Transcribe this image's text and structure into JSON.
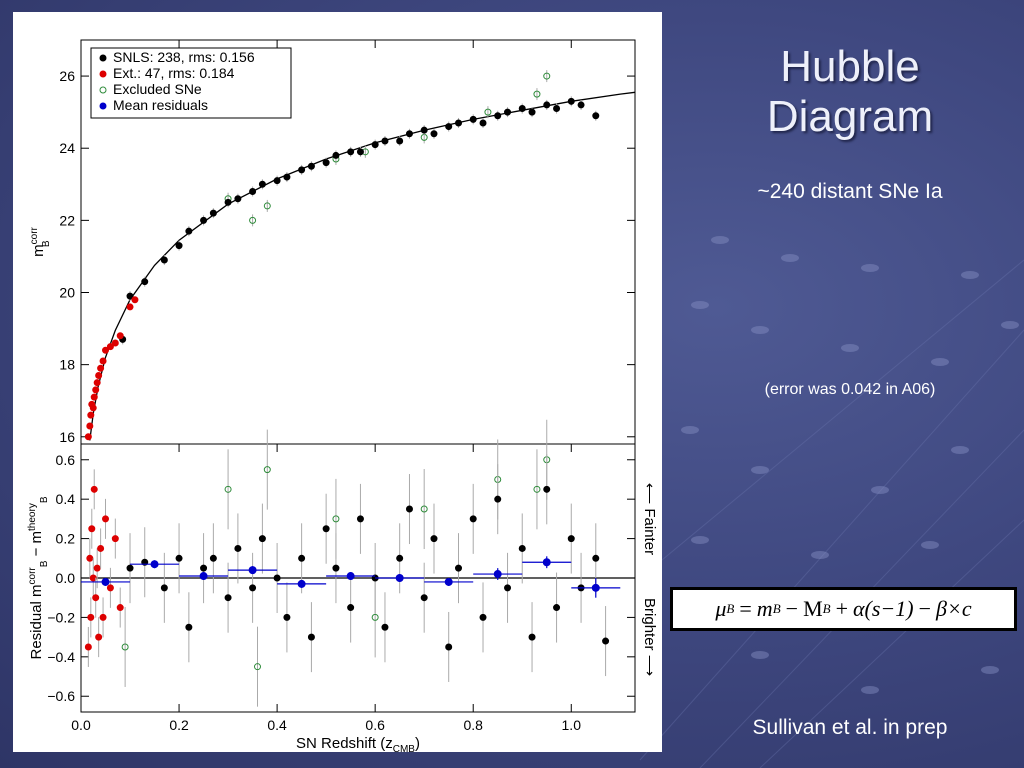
{
  "slide": {
    "title_line1": "Hubble",
    "title_line2": "Diagram",
    "subtitle": "~240 distant SNe Ia",
    "error_note": "(error was 0.042 in A06)",
    "citation": "Sullivan et al. in prep",
    "formula": {
      "mu": "μ",
      "mu_sub": "B",
      "eq": "=",
      "m": "m",
      "m_sub": "B",
      "minus1": "−",
      "M": "M",
      "M_sub": "B",
      "plus": "+",
      "alpha_term": "α(s−1)",
      "minus2": "−",
      "beta_term": "β×c"
    }
  },
  "colors": {
    "snls": "#000000",
    "ext": "#dd0000",
    "excluded": "#2e8b3a",
    "mean": "#0000cc",
    "errorbar": "#aaaaaa"
  },
  "chart_data": [
    {
      "type": "scatter",
      "panel": "top",
      "ylabel": "m",
      "ylabel_sup": "corr",
      "ylabel_sub": "B",
      "xlim": [
        0.0,
        1.13
      ],
      "ylim": [
        15.8,
        27.0
      ],
      "yticks": [
        "16",
        "18",
        "20",
        "22",
        "24",
        "26"
      ],
      "ytick_values": [
        16,
        18,
        20,
        22,
        24,
        26
      ],
      "legend": {
        "position": "top-left",
        "entries": [
          {
            "label": "SNLS: 238, rms: 0.156",
            "marker": "filled",
            "color_key": "snls"
          },
          {
            "label": "Ext.: 47, rms: 0.184",
            "marker": "filled",
            "color_key": "ext"
          },
          {
            "label": "Excluded SNe",
            "marker": "open",
            "color_key": "excluded"
          },
          {
            "label": "Mean residuals",
            "marker": "filled",
            "color_key": "mean"
          }
        ]
      },
      "model_curve": {
        "x": [
          0.018,
          0.025,
          0.035,
          0.05,
          0.07,
          0.1,
          0.15,
          0.2,
          0.3,
          0.4,
          0.5,
          0.6,
          0.7,
          0.8,
          0.9,
          1.0,
          1.1,
          1.13
        ],
        "y": [
          15.9,
          16.65,
          17.4,
          18.2,
          18.95,
          19.8,
          20.75,
          21.45,
          22.45,
          23.15,
          23.7,
          24.15,
          24.5,
          24.8,
          25.05,
          25.3,
          25.5,
          25.55
        ]
      },
      "ext_points": {
        "x": [
          0.015,
          0.018,
          0.02,
          0.022,
          0.025,
          0.027,
          0.03,
          0.033,
          0.036,
          0.04,
          0.045,
          0.05,
          0.06,
          0.07,
          0.08,
          0.1,
          0.11
        ],
        "y": [
          16.0,
          16.3,
          16.6,
          16.9,
          16.8,
          17.1,
          17.3,
          17.5,
          17.7,
          17.9,
          18.1,
          18.4,
          18.5,
          18.6,
          18.8,
          19.6,
          19.8
        ]
      },
      "excluded_points": {
        "x": [
          0.3,
          0.35,
          0.38,
          0.52,
          0.58,
          0.7,
          0.83,
          0.93,
          0.95
        ],
        "y": [
          22.6,
          22.0,
          22.4,
          23.7,
          23.9,
          24.3,
          25.0,
          25.5,
          26.0
        ]
      },
      "snls_points": {
        "x": [
          0.085,
          0.1,
          0.13,
          0.17,
          0.2,
          0.22,
          0.25,
          0.27,
          0.3,
          0.32,
          0.35,
          0.37,
          0.4,
          0.42,
          0.45,
          0.47,
          0.5,
          0.52,
          0.55,
          0.57,
          0.6,
          0.62,
          0.65,
          0.67,
          0.7,
          0.72,
          0.75,
          0.77,
          0.8,
          0.82,
          0.85,
          0.87,
          0.9,
          0.92,
          0.95,
          0.97,
          1.0,
          1.02,
          1.05
        ],
        "y": [
          18.7,
          19.9,
          20.3,
          20.9,
          21.3,
          21.7,
          22.0,
          22.2,
          22.5,
          22.6,
          22.8,
          23.0,
          23.1,
          23.2,
          23.4,
          23.5,
          23.6,
          23.8,
          23.9,
          23.9,
          24.1,
          24.2,
          24.2,
          24.4,
          24.5,
          24.4,
          24.6,
          24.7,
          24.8,
          24.7,
          24.9,
          25.0,
          25.1,
          25.0,
          25.2,
          25.1,
          25.3,
          25.2,
          24.9
        ]
      }
    },
    {
      "type": "scatter",
      "panel": "bottom",
      "ylabel": "Residual  m",
      "ylabel_sup1": "corr",
      "ylabel_sub1": "B",
      "ylabel_mid": " − m",
      "ylabel_sup2": "theory",
      "ylabel_sub2": "B",
      "xlabel": "SN Redshift (z",
      "xlabel_sub": "CMB",
      "xlabel_end": ")",
      "xlim": [
        0.0,
        1.13
      ],
      "ylim": [
        -0.68,
        0.68
      ],
      "xticks": [
        "0.0",
        "0.2",
        "0.4",
        "0.6",
        "0.8",
        "1.0"
      ],
      "xtick_values": [
        0.0,
        0.2,
        0.4,
        0.6,
        0.8,
        1.0
      ],
      "yticks": [
        "0.6",
        "0.4",
        "0.2",
        "0.0",
        "−0.2",
        "−0.4",
        "−0.6"
      ],
      "ytick_values": [
        0.6,
        0.4,
        0.2,
        0.0,
        -0.2,
        -0.4,
        -0.6
      ],
      "side_label_top": "⟵ Fainter",
      "side_label_bottom": "Brighter ⟶",
      "mean_residuals": {
        "x": [
          0.05,
          0.15,
          0.25,
          0.35,
          0.45,
          0.55,
          0.65,
          0.75,
          0.85,
          0.95,
          1.05
        ],
        "y": [
          -0.02,
          0.07,
          0.01,
          0.04,
          -0.03,
          0.01,
          0.0,
          -0.02,
          0.02,
          0.08,
          -0.05
        ],
        "xerr": [
          0.05,
          0.05,
          0.05,
          0.05,
          0.05,
          0.05,
          0.05,
          0.05,
          0.05,
          0.05,
          0.05
        ],
        "yerr": [
          0.02,
          0.02,
          0.02,
          0.02,
          0.02,
          0.02,
          0.02,
          0.02,
          0.03,
          0.03,
          0.05
        ]
      },
      "ext_points": {
        "x": [
          0.015,
          0.018,
          0.02,
          0.022,
          0.025,
          0.027,
          0.03,
          0.033,
          0.036,
          0.04,
          0.045,
          0.05,
          0.06,
          0.07,
          0.08
        ],
        "y": [
          -0.35,
          0.1,
          -0.2,
          0.25,
          0.0,
          0.45,
          -0.1,
          0.05,
          -0.3,
          0.15,
          -0.2,
          0.3,
          -0.05,
          0.2,
          -0.15
        ]
      },
      "excluded_points": {
        "x": [
          0.09,
          0.3,
          0.36,
          0.38,
          0.52,
          0.6,
          0.7,
          0.85,
          0.93,
          0.95
        ],
        "y": [
          -0.35,
          0.45,
          -0.45,
          0.55,
          0.3,
          -0.2,
          0.35,
          0.5,
          0.45,
          0.6
        ]
      },
      "snls_points": {
        "x": [
          0.1,
          0.13,
          0.17,
          0.2,
          0.22,
          0.25,
          0.27,
          0.3,
          0.32,
          0.35,
          0.37,
          0.4,
          0.42,
          0.45,
          0.47,
          0.5,
          0.52,
          0.55,
          0.57,
          0.6,
          0.62,
          0.65,
          0.67,
          0.7,
          0.72,
          0.75,
          0.77,
          0.8,
          0.82,
          0.85,
          0.87,
          0.9,
          0.92,
          0.95,
          0.97,
          1.0,
          1.02,
          1.05,
          1.07
        ],
        "y": [
          0.05,
          0.08,
          -0.05,
          0.1,
          -0.25,
          0.05,
          0.1,
          -0.1,
          0.15,
          -0.05,
          0.2,
          0.0,
          -0.2,
          0.1,
          -0.3,
          0.25,
          0.05,
          -0.15,
          0.3,
          0.0,
          -0.25,
          0.1,
          0.35,
          -0.1,
          0.2,
          -0.35,
          0.05,
          0.3,
          -0.2,
          0.4,
          -0.05,
          0.15,
          -0.3,
          0.45,
          -0.15,
          0.2,
          -0.05,
          0.1,
          -0.32
        ]
      }
    }
  ]
}
